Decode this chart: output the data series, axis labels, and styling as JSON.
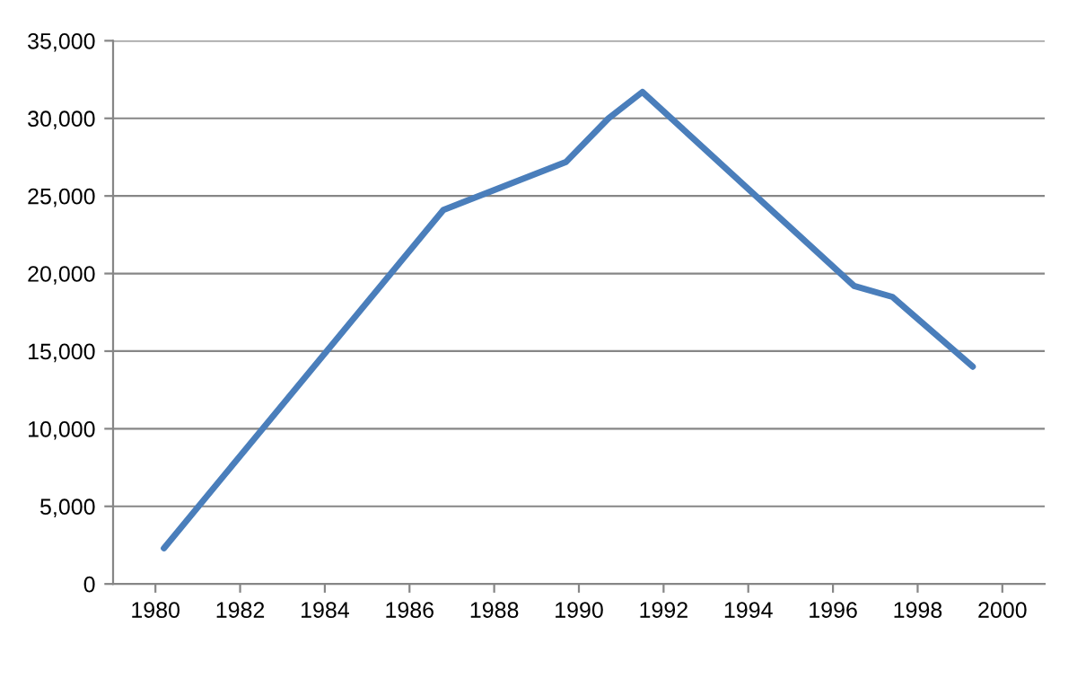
{
  "chart_data": {
    "type": "line",
    "x": [
      1980.2,
      1986.8,
      1989.7,
      1990.7,
      1991.5,
      1996.5,
      1997.4,
      1999.3
    ],
    "series": [
      {
        "color": "#4a7ebb",
        "values": [
          2300,
          24100,
          27200,
          30000,
          31700,
          19200,
          18500,
          14000
        ]
      }
    ],
    "xlim": [
      1979,
      2001
    ],
    "xticks": [
      1980,
      1982,
      1984,
      1986,
      1988,
      1990,
      1992,
      1994,
      1996,
      1998,
      2000
    ],
    "ylim": [
      0,
      35000
    ],
    "yticks": [
      0,
      {
        "value": 5000,
        "label": "5,000"
      },
      {
        "value": 10000,
        "label": "10,000"
      },
      {
        "value": 15000,
        "label": "15,000"
      },
      {
        "value": 20000,
        "label": "20,000"
      },
      {
        "value": 25000,
        "label": "25,000"
      },
      {
        "value": 30000,
        "label": "30,000"
      },
      {
        "value": 35000,
        "label": "35,000"
      }
    ],
    "grid": "y",
    "marker": "none",
    "line_style": "solid"
  }
}
